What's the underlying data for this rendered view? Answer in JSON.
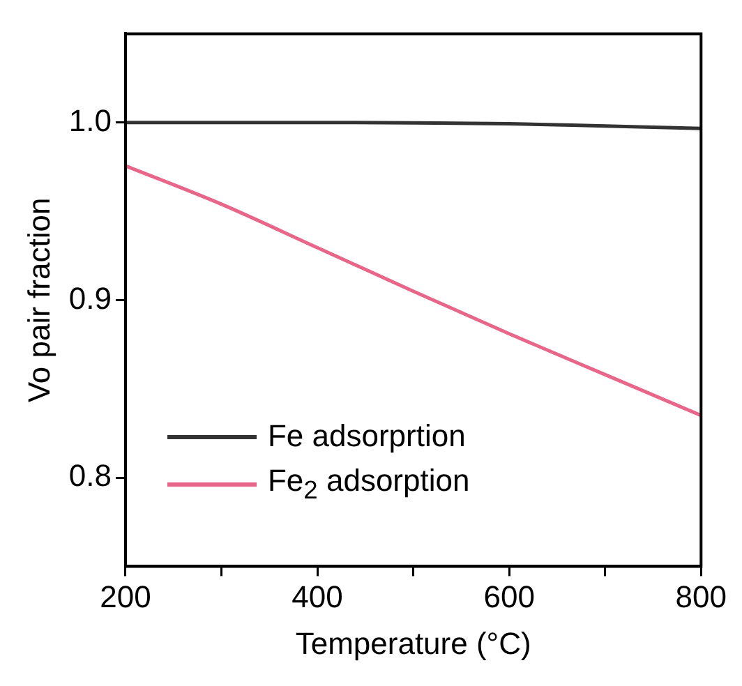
{
  "chart_data": {
    "type": "line",
    "xlabel": "Temperature (°C)",
    "ylabel": "Vo pair fraction",
    "x": [
      200,
      300,
      400,
      500,
      600,
      700,
      800
    ],
    "xlim": [
      200,
      800
    ],
    "xticks": [
      200,
      {
        "value": 300,
        "label": null
      },
      400,
      {
        "value": 500,
        "label": null
      },
      600,
      {
        "value": 700,
        "label": null
      },
      800
    ],
    "ylim": [
      0.75,
      1.05
    ],
    "yticks": [
      {
        "value": 0.8,
        "label": "0.8"
      },
      {
        "value": 0.9,
        "label": "0.9"
      },
      {
        "value": 1.0,
        "label": "1.0"
      }
    ],
    "series": [
      {
        "name": "Fe adsorprtion",
        "color": "#333333",
        "values": [
          1.0,
          1.0,
          1.0,
          0.9998,
          0.9993,
          0.998,
          0.9967
        ]
      },
      {
        "name": "Fe$_{2}$ adsorption",
        "color": "#e8668a",
        "values": [
          0.9756,
          0.954,
          0.9295,
          0.905,
          0.881,
          0.858,
          0.835
        ]
      }
    ],
    "grid": false,
    "legend": "bottom left",
    "marker": "none",
    "line_style": "solid"
  }
}
